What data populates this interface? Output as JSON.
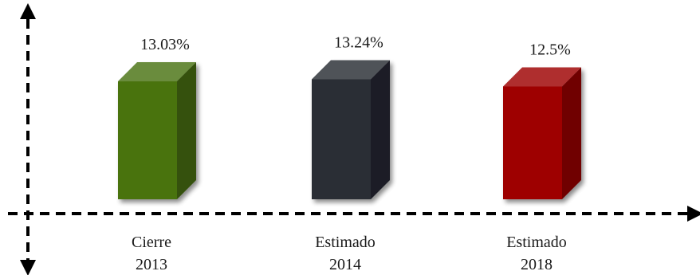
{
  "chart_data": {
    "type": "bar",
    "categories": [
      [
        "Cierre",
        "2013"
      ],
      [
        "Estimado",
        "2014"
      ],
      [
        "Estimado",
        "2018"
      ]
    ],
    "values": [
      13.03,
      13.24,
      12.5
    ],
    "data_labels": [
      "13.03%",
      "13.24%",
      "12.5%"
    ],
    "colors": [
      "#4a7311",
      "#2a2d35",
      "#9e0000"
    ],
    "title": "",
    "xlabel": "",
    "ylabel": "",
    "grid": false,
    "legend": "none",
    "style": "3d-box"
  }
}
